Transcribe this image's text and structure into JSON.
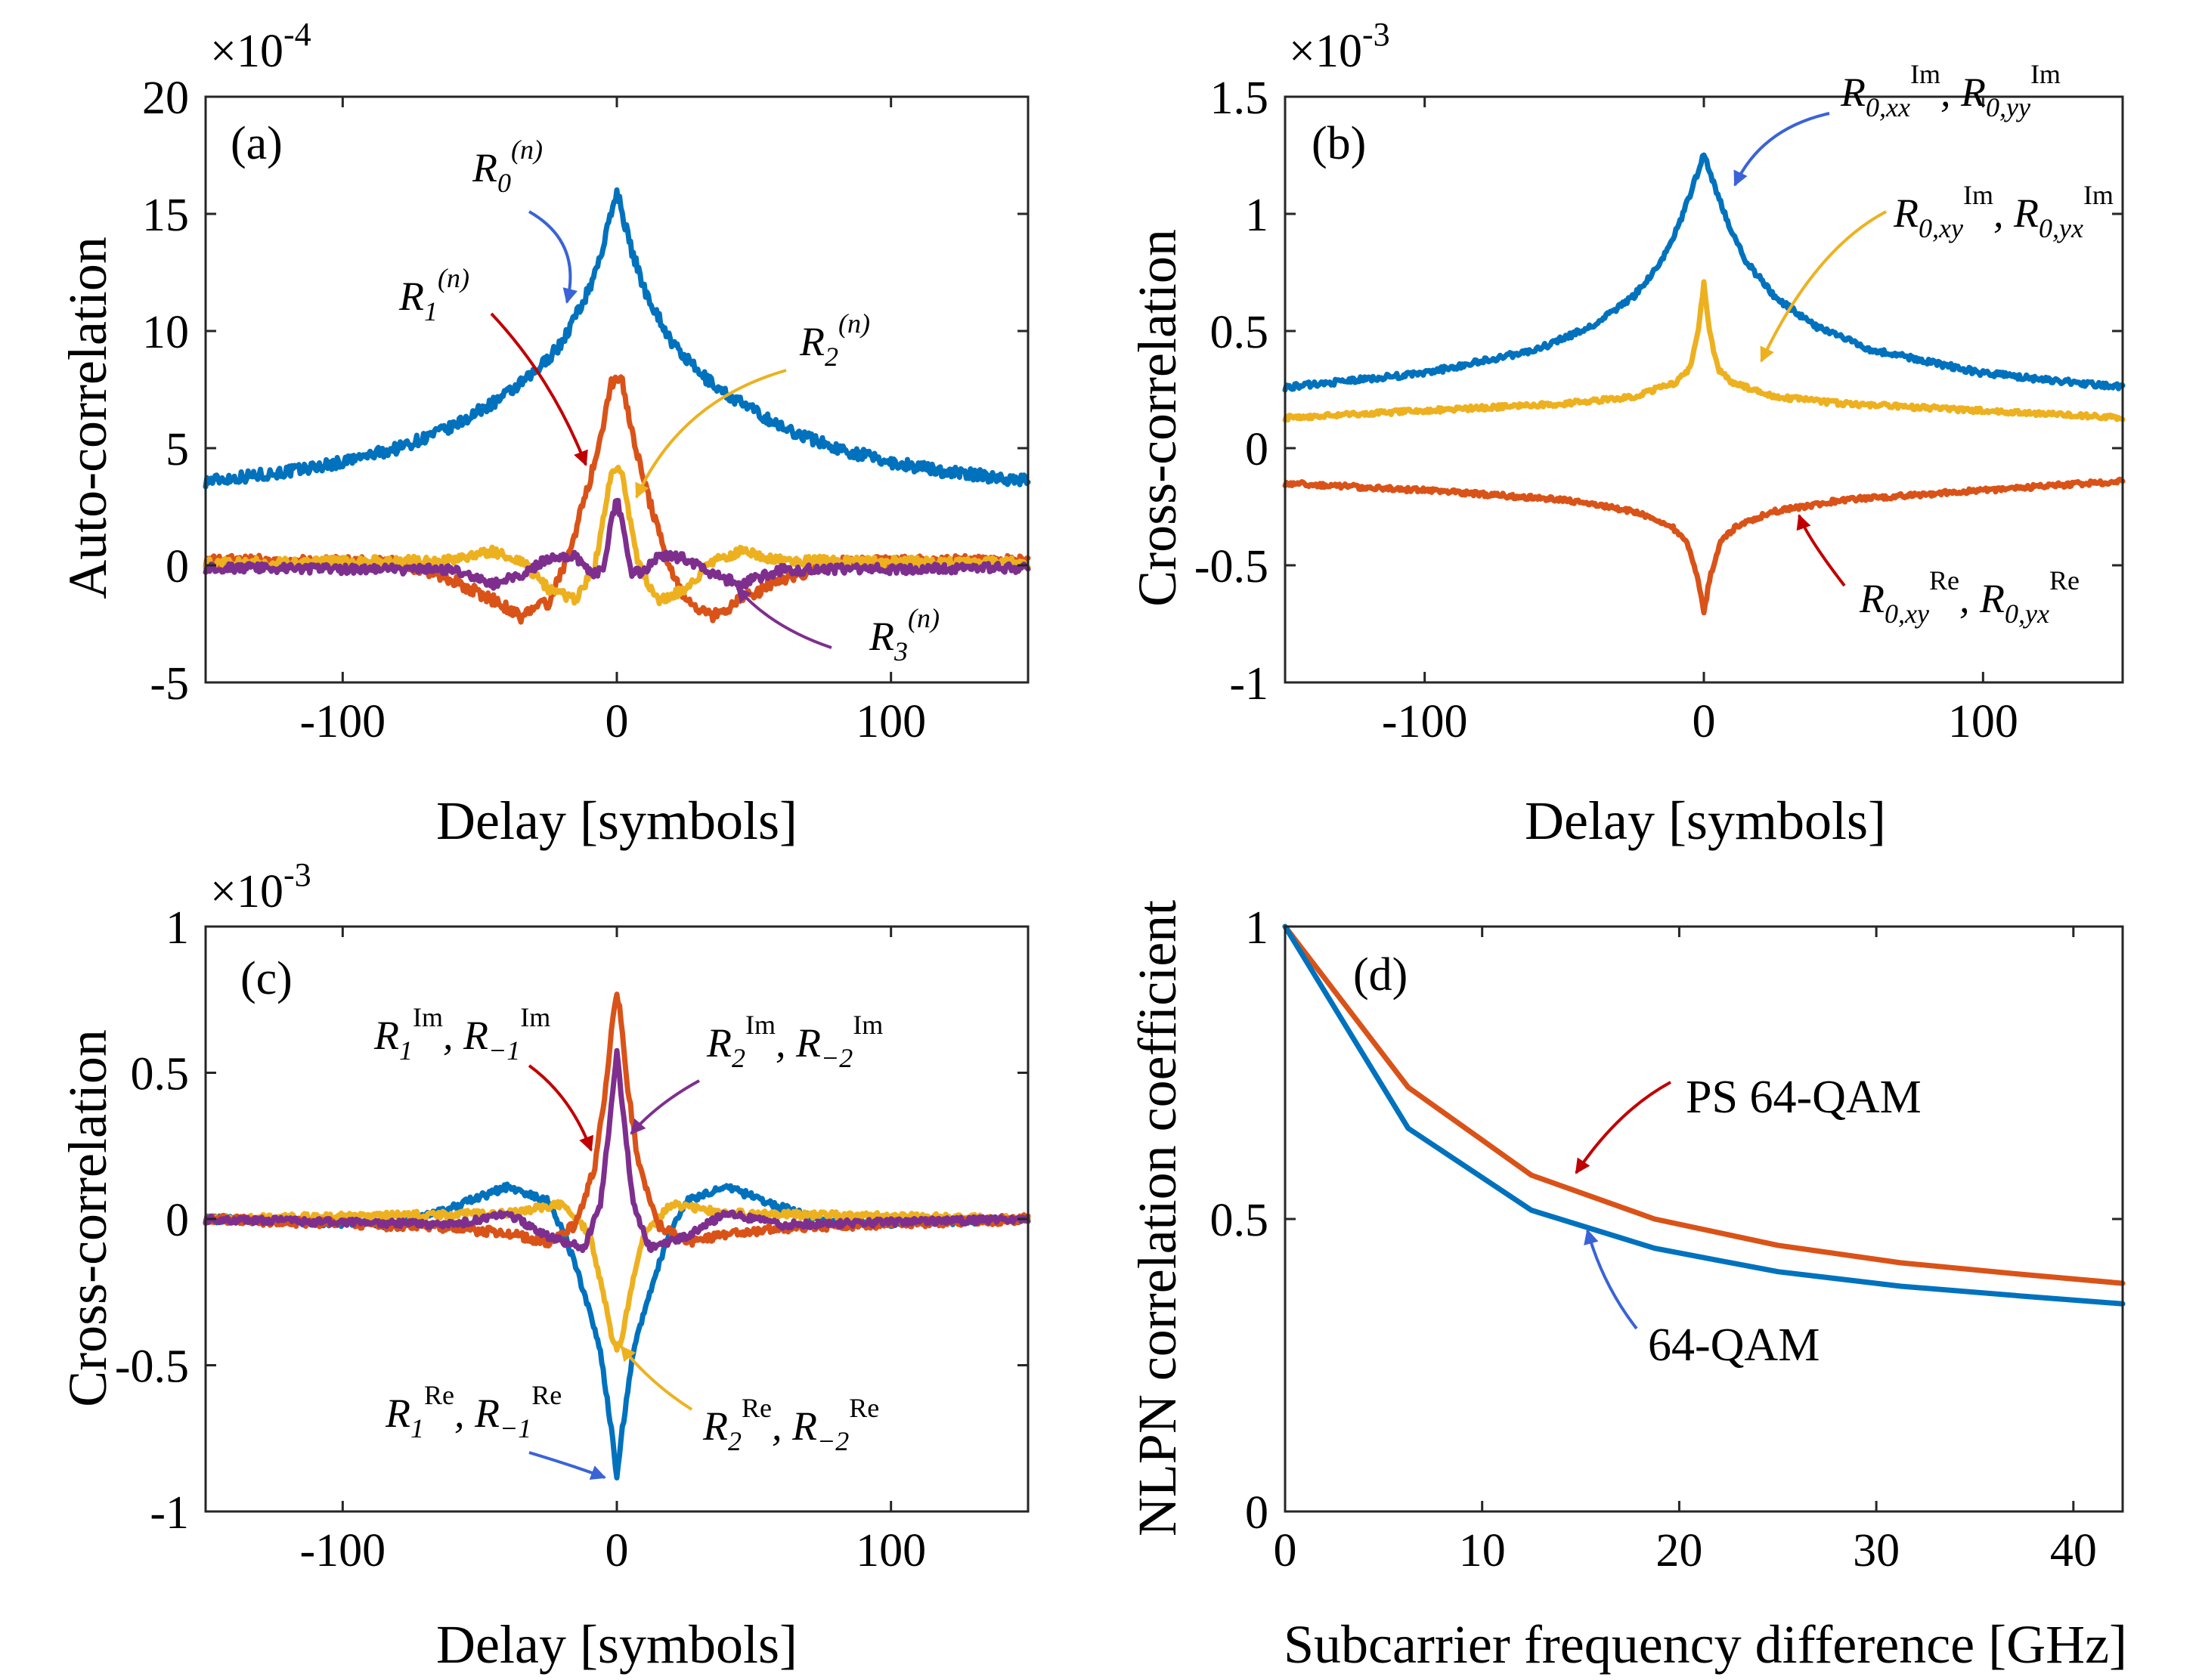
{
  "colors": {
    "blue": "#0072BD",
    "orange": "#D95319",
    "yellow": "#EDB120",
    "purple": "#7E2F8E",
    "red": "#C00000",
    "axis": "#262626"
  },
  "chart_data": [
    {
      "id": "a",
      "type": "line",
      "panel_label": "(a)",
      "xlabel": "Delay [symbols]",
      "ylabel": "Auto-correlation",
      "exponent": {
        "base": "×10",
        "power": "-4"
      },
      "xlim": [
        -150,
        150
      ],
      "ylim": [
        -5,
        20
      ],
      "xticks": [
        -100,
        0,
        100
      ],
      "xtick_labels": [
        "-100",
        "0",
        "100"
      ],
      "yticks": [
        -5,
        0,
        5,
        10,
        15,
        20
      ],
      "ytick_labels": [
        "-5",
        "0",
        "5",
        "10",
        "15",
        "20"
      ],
      "series": [
        {
          "name": "R0(n)",
          "color": "blue",
          "noise": 0.25,
          "x": [
            -150,
            -120,
            -100,
            -80,
            -60,
            -40,
            -30,
            -20,
            -10,
            -5,
            0,
            5,
            10,
            20,
            30,
            40,
            60,
            80,
            100,
            120,
            150
          ],
          "y": [
            3.6,
            4.0,
            4.4,
            5.0,
            5.9,
            7.3,
            8.2,
            9.5,
            11.8,
            13.6,
            16.0,
            13.6,
            11.8,
            9.5,
            8.2,
            7.3,
            5.9,
            5.0,
            4.4,
            4.0,
            3.6
          ]
        },
        {
          "name": "R1(n)",
          "color": "orange",
          "noise": 0.25,
          "x": [
            -150,
            -80,
            -60,
            -45,
            -35,
            -25,
            -20,
            -15,
            -10,
            -5,
            -2,
            0,
            2,
            5,
            10,
            15,
            20,
            25,
            35,
            45,
            60,
            80,
            150
          ],
          "y": [
            0.2,
            0.1,
            -0.6,
            -1.5,
            -2.2,
            -1.6,
            -0.3,
            1.5,
            3.5,
            6.0,
            7.8,
            8.0,
            7.8,
            6.0,
            3.5,
            1.5,
            -0.3,
            -1.6,
            -2.2,
            -1.5,
            -0.6,
            0.1,
            0.2
          ]
        },
        {
          "name": "R2(n)",
          "color": "yellow",
          "noise": 0.2,
          "x": [
            -150,
            -60,
            -45,
            -35,
            -25,
            -15,
            -8,
            -4,
            -2,
            0,
            2,
            4,
            8,
            15,
            25,
            35,
            45,
            60,
            150
          ],
          "y": [
            0.1,
            0.2,
            0.6,
            0.2,
            -1.0,
            -1.5,
            0.0,
            2.5,
            4.0,
            4.2,
            4.0,
            2.5,
            0.0,
            -1.5,
            -1.0,
            0.2,
            0.6,
            0.2,
            0.1
          ]
        },
        {
          "name": "R3(n)",
          "color": "purple",
          "noise": 0.2,
          "x": [
            -150,
            -60,
            -45,
            -35,
            -25,
            -15,
            -10,
            -5,
            -2,
            0,
            2,
            5,
            10,
            15,
            25,
            35,
            45,
            60,
            150
          ],
          "y": [
            -0.1,
            -0.2,
            -0.8,
            -0.4,
            0.3,
            0.4,
            -0.3,
            -0.3,
            1.8,
            2.9,
            1.8,
            -0.3,
            -0.3,
            0.4,
            0.3,
            -0.4,
            -0.8,
            -0.2,
            -0.1
          ]
        }
      ],
      "annotations": [
        {
          "name": "R0",
          "color": "blue"
        },
        {
          "name": "R1",
          "color": "red"
        },
        {
          "name": "R2",
          "color": "yellow"
        },
        {
          "name": "R3",
          "color": "purple"
        }
      ]
    },
    {
      "id": "b",
      "type": "line",
      "panel_label": "(b)",
      "xlabel": "Delay [symbols]",
      "ylabel": "Cross-correlation",
      "exponent": {
        "base": "×10",
        "power": "-3"
      },
      "xlim": [
        -150,
        150
      ],
      "ylim": [
        -1,
        1.5
      ],
      "xticks": [
        -100,
        0,
        100
      ],
      "xtick_labels": [
        "-100",
        "0",
        "100"
      ],
      "yticks": [
        -1,
        -0.5,
        0,
        0.5,
        1,
        1.5
      ],
      "ytick_labels": [
        "-1",
        "-0.5",
        "0",
        "0.5",
        "1",
        "1.5"
      ],
      "series": [
        {
          "name": "R0,xx Im / R0,yy Im",
          "color": "blue",
          "noise": 0.012,
          "x": [
            -150,
            -100,
            -60,
            -40,
            -25,
            -15,
            -8,
            -3,
            0,
            3,
            8,
            15,
            25,
            40,
            60,
            100,
            150
          ],
          "y": [
            0.26,
            0.32,
            0.42,
            0.52,
            0.65,
            0.8,
            0.98,
            1.15,
            1.26,
            1.15,
            0.98,
            0.8,
            0.65,
            0.52,
            0.42,
            0.32,
            0.26
          ]
        },
        {
          "name": "R0,xy Im / R0,yx Im",
          "color": "yellow",
          "noise": 0.01,
          "x": [
            -150,
            -100,
            -50,
            -25,
            -10,
            -5,
            -2,
            0,
            2,
            5,
            10,
            25,
            50,
            100,
            150
          ],
          "y": [
            0.13,
            0.16,
            0.19,
            0.22,
            0.28,
            0.34,
            0.5,
            0.7,
            0.5,
            0.34,
            0.28,
            0.22,
            0.19,
            0.16,
            0.13
          ]
        },
        {
          "name": "R0,xy Re / R0,yx Re",
          "color": "orange",
          "noise": 0.01,
          "x": [
            -150,
            -100,
            -50,
            -25,
            -12,
            -6,
            -2,
            0,
            2,
            6,
            12,
            25,
            50,
            100,
            150
          ],
          "y": [
            -0.15,
            -0.18,
            -0.22,
            -0.27,
            -0.33,
            -0.4,
            -0.56,
            -0.71,
            -0.56,
            -0.4,
            -0.33,
            -0.27,
            -0.22,
            -0.18,
            -0.14
          ]
        }
      ],
      "annotations": [
        {
          "name": "R0-im-xx-yy",
          "color": "blue"
        },
        {
          "name": "R0-im-xy-yx",
          "color": "yellow"
        },
        {
          "name": "R0-re-xy-yx",
          "color": "red"
        }
      ]
    },
    {
      "id": "c",
      "type": "line",
      "panel_label": "(c)",
      "xlabel": "Delay [symbols]",
      "ylabel": "Cross-correlation",
      "exponent": {
        "base": "×10",
        "power": "-3"
      },
      "xlim": [
        -150,
        150
      ],
      "ylim": [
        -1,
        1
      ],
      "xticks": [
        -100,
        0,
        100
      ],
      "xtick_labels": [
        "-100",
        "0",
        "100"
      ],
      "yticks": [
        -1,
        -0.5,
        0,
        0.5,
        1
      ],
      "ytick_labels": [
        "-1",
        "-0.5",
        "0",
        "0.5",
        "1"
      ],
      "series": [
        {
          "name": "R1 Re, R-1 Re",
          "color": "blue",
          "noise": 0.012,
          "x": [
            -150,
            -80,
            -60,
            -40,
            -25,
            -18,
            -12,
            -6,
            -2,
            0,
            2,
            6,
            12,
            18,
            25,
            40,
            60,
            80,
            150
          ],
          "y": [
            0.0,
            -0.02,
            0.04,
            0.11,
            0.06,
            -0.08,
            -0.25,
            -0.45,
            -0.72,
            -0.89,
            -0.72,
            -0.45,
            -0.25,
            -0.08,
            0.06,
            0.11,
            0.04,
            -0.02,
            0.0
          ]
        },
        {
          "name": "R2 Re, R-2 Re",
          "color": "yellow",
          "noise": 0.012,
          "x": [
            -150,
            -40,
            -20,
            -10,
            -5,
            -2,
            0,
            2,
            5,
            10,
            20,
            40,
            150
          ],
          "y": [
            0.0,
            0.02,
            0.05,
            -0.05,
            -0.25,
            -0.4,
            -0.45,
            -0.4,
            -0.25,
            -0.05,
            0.05,
            0.02,
            0.0
          ]
        },
        {
          "name": "R1 Im, R-1 Im",
          "color": "orange",
          "noise": 0.015,
          "x": [
            -150,
            -60,
            -40,
            -25,
            -15,
            -8,
            -4,
            -1,
            0,
            1,
            4,
            8,
            15,
            25,
            40,
            60,
            150
          ],
          "y": [
            0.0,
            -0.03,
            -0.05,
            -0.08,
            -0.02,
            0.18,
            0.45,
            0.72,
            0.77,
            0.72,
            0.45,
            0.18,
            -0.02,
            -0.08,
            -0.05,
            -0.03,
            0.0
          ]
        },
        {
          "name": "R2 Im, R-2 Im",
          "color": "purple",
          "noise": 0.012,
          "x": [
            -150,
            -60,
            -40,
            -25,
            -12,
            -6,
            -3,
            0,
            3,
            6,
            12,
            25,
            40,
            60,
            150
          ],
          "y": [
            0.0,
            -0.02,
            0.02,
            -0.06,
            -0.1,
            0.05,
            0.3,
            0.58,
            0.3,
            0.05,
            -0.1,
            -0.06,
            0.02,
            -0.02,
            0.0
          ]
        }
      ],
      "annotations": [
        {
          "name": "R1-im",
          "color": "red"
        },
        {
          "name": "R2-im",
          "color": "purple"
        },
        {
          "name": "R1-re",
          "color": "blue"
        },
        {
          "name": "R2-re",
          "color": "yellow"
        }
      ]
    },
    {
      "id": "d",
      "type": "line",
      "panel_label": "(d)",
      "xlabel": "Subcarrier frequency difference [GHz]",
      "ylabel": "NLPN correlation coefficient",
      "xlim": [
        0,
        42.5
      ],
      "ylim": [
        0,
        1
      ],
      "xticks": [
        0,
        10,
        20,
        30,
        40
      ],
      "xtick_labels": [
        "0",
        "10",
        "20",
        "30",
        "40"
      ],
      "yticks": [
        0,
        0.5,
        1
      ],
      "ytick_labels": [
        "0",
        "0.5",
        "1"
      ],
      "series": [
        {
          "name": "PS 64-QAM",
          "color": "orange",
          "noise": 0,
          "x": [
            0,
            6.25,
            12.5,
            18.75,
            25,
            31.25,
            37.5,
            42.5
          ],
          "y": [
            1.0,
            0.725,
            0.575,
            0.5,
            0.455,
            0.425,
            0.405,
            0.39
          ]
        },
        {
          "name": "64-QAM",
          "color": "blue",
          "noise": 0,
          "x": [
            0,
            6.25,
            12.5,
            18.75,
            25,
            31.25,
            37.5,
            42.5
          ],
          "y": [
            1.0,
            0.655,
            0.515,
            0.45,
            0.41,
            0.385,
            0.368,
            0.355
          ]
        }
      ],
      "annotations": [
        {
          "name": "PS 64-QAM",
          "color": "red",
          "text": "PS 64-QAM"
        },
        {
          "name": "64-QAM",
          "color": "blue",
          "text": "64-QAM"
        }
      ]
    }
  ]
}
